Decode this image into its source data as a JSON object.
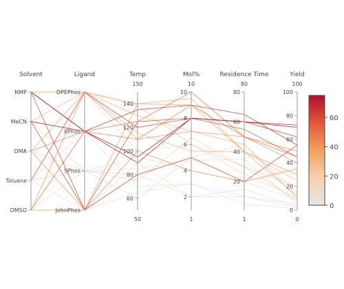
{
  "chart_data": {
    "type": "parallel_coordinates",
    "dimensions": [
      {
        "key": "solvent",
        "label": "Solvent",
        "kind": "categorical",
        "categories": [
          "NMP",
          "MeCN",
          "DMA",
          "Toluene",
          "DMSO"
        ]
      },
      {
        "key": "ligand",
        "label": "Ligand",
        "kind": "categorical",
        "categories": [
          "DPEPhos",
          "XPhos",
          "SPhos",
          "JohnPhos"
        ]
      },
      {
        "key": "temp",
        "label": "Temp",
        "kind": "numeric",
        "range": [
          50,
          150
        ],
        "ticks": [
          60,
          80,
          100,
          120,
          140
        ],
        "range_labels": [
          "150",
          "50"
        ]
      },
      {
        "key": "mol",
        "label": "Mol%",
        "kind": "numeric",
        "range": [
          1,
          10
        ],
        "ticks": [
          2,
          4,
          6,
          8,
          10
        ],
        "range_labels": [
          "10",
          "1"
        ]
      },
      {
        "key": "res",
        "label": "Residence Time",
        "kind": "numeric",
        "range": [
          1,
          80
        ],
        "ticks": [
          20,
          40,
          60,
          80
        ],
        "range_labels": [
          "80",
          "1"
        ]
      },
      {
        "key": "yield",
        "label": "Yield",
        "kind": "numeric",
        "range": [
          0,
          100
        ],
        "ticks": [
          0,
          20,
          40,
          60,
          80,
          100
        ],
        "range_labels": [
          "100",
          "0"
        ]
      }
    ],
    "records": [
      {
        "solvent": "NMP",
        "ligand": "JohnPhos",
        "temp": 80,
        "mol": 5,
        "res": 20,
        "yield": 55,
        "color_value": 60
      },
      {
        "solvent": "NMP",
        "ligand": "XPhos",
        "temp": 95,
        "mol": 8,
        "res": 60,
        "yield": 70,
        "color_value": 72
      },
      {
        "solvent": "NMP",
        "ligand": "DPEPhos",
        "temp": 140,
        "mol": 9.5,
        "res": 40,
        "yield": 12,
        "color_value": 32
      },
      {
        "solvent": "MeCN",
        "ligand": "JohnPhos",
        "temp": 125,
        "mol": 8,
        "res": 55,
        "yield": 45,
        "color_value": 55
      },
      {
        "solvent": "MeCN",
        "ligand": "XPhos",
        "temp": 90,
        "mol": 8,
        "res": 60,
        "yield": 72,
        "color_value": 70
      },
      {
        "solvent": "MeCN",
        "ligand": "DPEPhos",
        "temp": 130,
        "mol": 7,
        "res": 45,
        "yield": 10,
        "color_value": 28
      },
      {
        "solvent": "DMA",
        "ligand": "XPhos",
        "temp": 110,
        "mol": 9,
        "res": 50,
        "yield": 50,
        "color_value": 45
      },
      {
        "solvent": "DMA",
        "ligand": "DPEPhos",
        "temp": 138,
        "mol": 6,
        "res": 30,
        "yield": 8,
        "color_value": 22
      },
      {
        "solvent": "DMA",
        "ligand": "JohnPhos",
        "temp": 100,
        "mol": 4,
        "res": 20,
        "yield": 35,
        "color_value": 40
      },
      {
        "solvent": "Toluene",
        "ligand": "DPEPhos",
        "temp": 120,
        "mol": 8,
        "res": 60,
        "yield": 62,
        "color_value": 58
      },
      {
        "solvent": "Toluene",
        "ligand": "SPhos",
        "temp": 85,
        "mol": 4.8,
        "res": 35,
        "yield": 5,
        "color_value": 6
      },
      {
        "solvent": "Toluene",
        "ligand": "XPhos",
        "temp": 70,
        "mol": 3,
        "res": 10,
        "yield": 2,
        "color_value": 4
      },
      {
        "solvent": "DMSO",
        "ligand": "XPhos",
        "temp": 125,
        "mol": 10,
        "res": 50,
        "yield": 45,
        "color_value": 48
      },
      {
        "solvent": "DMSO",
        "ligand": "JohnPhos",
        "temp": 140,
        "mol": 9,
        "res": 40,
        "yield": 30,
        "color_value": 35
      },
      {
        "solvent": "DMSO",
        "ligand": "SPhos",
        "temp": 80,
        "mol": 2,
        "res": 15,
        "yield": 3,
        "color_value": 5
      },
      {
        "solvent": "NMP",
        "ligand": "DPEPhos",
        "temp": 100,
        "mol": 6,
        "res": 25,
        "yield": 10,
        "color_value": 8
      },
      {
        "solvent": "MeCN",
        "ligand": "SPhos",
        "temp": 60,
        "mol": 5,
        "res": 45,
        "yield": 15,
        "color_value": 10
      },
      {
        "solvent": "DMA",
        "ligand": "SPhos",
        "temp": 75,
        "mol": 6.5,
        "res": 30,
        "yield": 20,
        "color_value": 14
      },
      {
        "solvent": "Toluene",
        "ligand": "JohnPhos",
        "temp": 65,
        "mol": 3,
        "res": 5,
        "yield": 1,
        "color_value": 2
      },
      {
        "solvent": "DMSO",
        "ligand": "DPEPhos",
        "temp": 110,
        "mol": 7,
        "res": 50,
        "yield": 40,
        "color_value": 38
      },
      {
        "solvent": "NMP",
        "ligand": "XPhos",
        "temp": 135,
        "mol": 9,
        "res": 65,
        "yield": 55,
        "color_value": 62
      },
      {
        "solvent": "MeCN",
        "ligand": "JohnPhos",
        "temp": 90,
        "mol": 2,
        "res": 10,
        "yield": 5,
        "color_value": 5
      },
      {
        "solvent": "DMA",
        "ligand": "DPEPhos",
        "temp": 115,
        "mol": 5.5,
        "res": 40,
        "yield": 25,
        "color_value": 26
      },
      {
        "solvent": "Toluene",
        "ligand": "SPhos",
        "temp": 95,
        "mol": 4,
        "res": 20,
        "yield": 8,
        "color_value": 7
      }
    ],
    "colorbar": {
      "min": 0,
      "max": 75,
      "ticks": [
        0,
        20,
        40,
        60
      ],
      "colors": [
        "#e6e6e6",
        "#f7d2b0",
        "#f4a060",
        "#e0573a",
        "#b0102a"
      ]
    }
  }
}
